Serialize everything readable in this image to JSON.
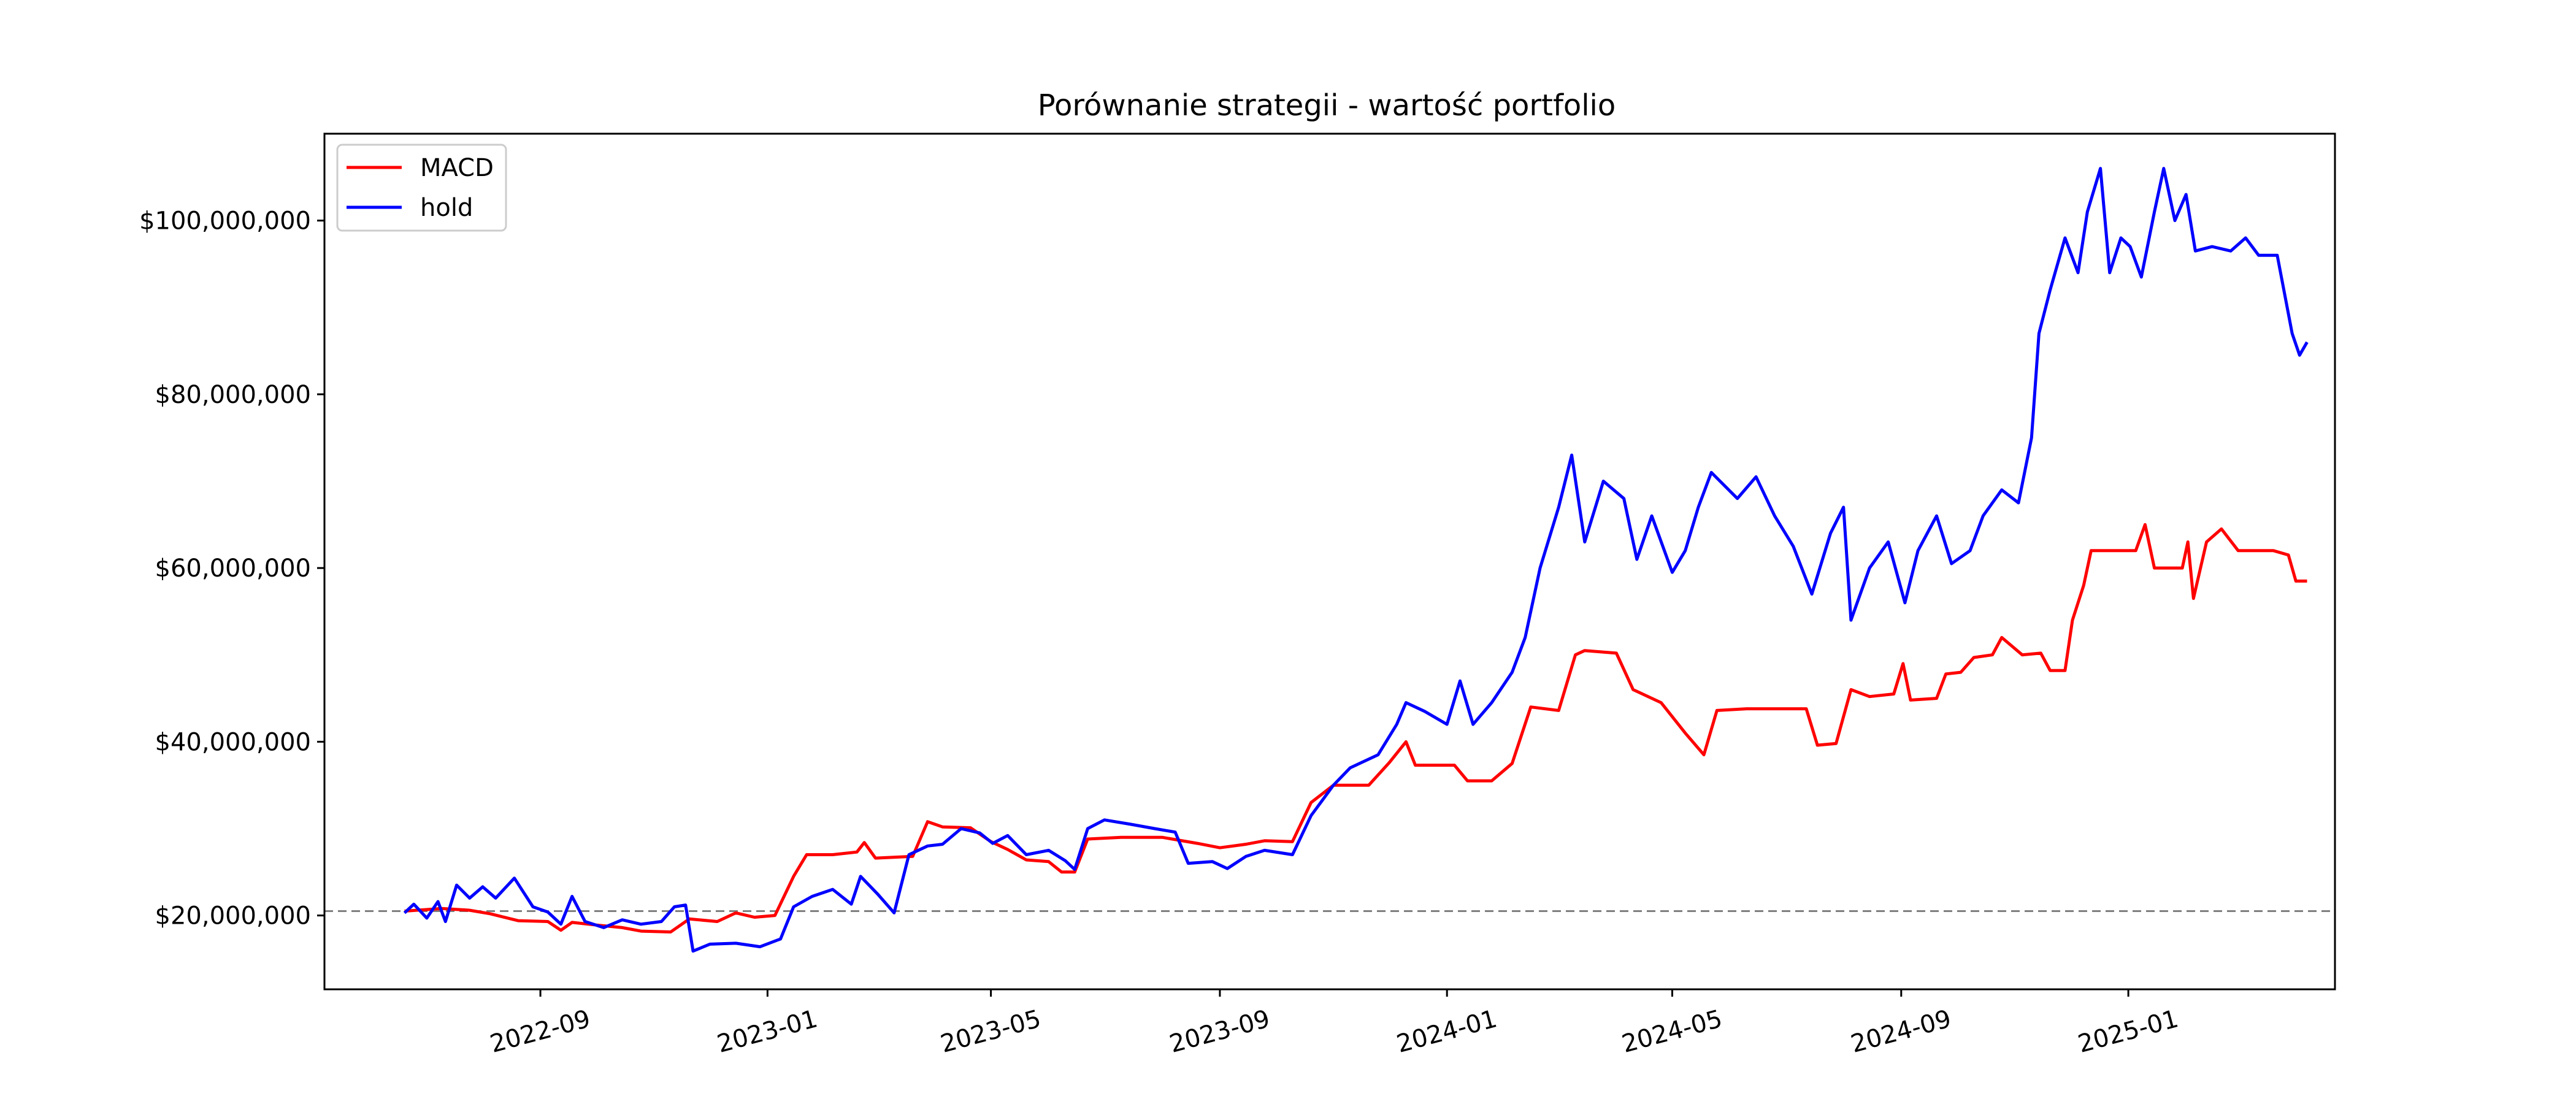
{
  "chart_data": {
    "type": "line",
    "title": "Porównanie strategii - wartość portfolio",
    "xlabel": "",
    "ylabel": "",
    "x_ticks": [
      "2022-09",
      "2023-01",
      "2023-05",
      "2023-09",
      "2024-01",
      "2024-05",
      "2024-09",
      "2025-01"
    ],
    "y_ticks": [
      "$20,000,000",
      "$40,000,000",
      "$60,000,000",
      "$80,000,000",
      "$100,000,000"
    ],
    "y_tick_values": [
      20000000,
      40000000,
      60000000,
      80000000,
      100000000
    ],
    "xlim": [
      "2022-05-08",
      "2025-04-22"
    ],
    "ylim": [
      11500000,
      110000000
    ],
    "grid": false,
    "legend": "top-left",
    "reference_line": {
      "y": 20500000,
      "style": "dashed",
      "color": "#808080"
    },
    "series": [
      {
        "name": "MACD",
        "color": "#ff0000",
        "points": [
          [
            "2022-06-20",
            20.5
          ],
          [
            "2022-07-10",
            20.8
          ],
          [
            "2022-07-25",
            20.6
          ],
          [
            "2022-08-05",
            20.2
          ],
          [
            "2022-08-20",
            19.4
          ],
          [
            "2022-09-05",
            19.3
          ],
          [
            "2022-09-12",
            18.3
          ],
          [
            "2022-09-18",
            19.2
          ],
          [
            "2022-10-01",
            18.9
          ],
          [
            "2022-10-15",
            18.6
          ],
          [
            "2022-10-25",
            18.2
          ],
          [
            "2022-11-10",
            18.1
          ],
          [
            "2022-11-20",
            19.6
          ],
          [
            "2022-12-05",
            19.3
          ],
          [
            "2022-12-15",
            20.3
          ],
          [
            "2022-12-25",
            19.8
          ],
          [
            "2023-01-05",
            20.0
          ],
          [
            "2023-01-15",
            24.5
          ],
          [
            "2023-01-22",
            27.0
          ],
          [
            "2023-02-05",
            27.0
          ],
          [
            "2023-02-18",
            27.3
          ],
          [
            "2023-02-22",
            28.4
          ],
          [
            "2023-02-28",
            26.6
          ],
          [
            "2023-03-20",
            26.8
          ],
          [
            "2023-03-28",
            30.8
          ],
          [
            "2023-04-05",
            30.2
          ],
          [
            "2023-04-20",
            30.1
          ],
          [
            "2023-05-01",
            28.5
          ],
          [
            "2023-05-10",
            27.6
          ],
          [
            "2023-05-20",
            26.4
          ],
          [
            "2023-06-01",
            26.2
          ],
          [
            "2023-06-08",
            25.0
          ],
          [
            "2023-06-15",
            25.0
          ],
          [
            "2023-06-22",
            28.8
          ],
          [
            "2023-07-10",
            29.0
          ],
          [
            "2023-08-01",
            29.0
          ],
          [
            "2023-08-20",
            28.3
          ],
          [
            "2023-09-01",
            27.8
          ],
          [
            "2023-09-15",
            28.2
          ],
          [
            "2023-09-25",
            28.6
          ],
          [
            "2023-10-10",
            28.5
          ],
          [
            "2023-10-20",
            33.0
          ],
          [
            "2023-11-01",
            35.0
          ],
          [
            "2023-11-20",
            35.0
          ],
          [
            "2023-12-01",
            37.6
          ],
          [
            "2023-12-10",
            40.0
          ],
          [
            "2023-12-15",
            37.3
          ],
          [
            "2024-01-05",
            37.3
          ],
          [
            "2024-01-12",
            35.5
          ],
          [
            "2024-01-25",
            35.5
          ],
          [
            "2024-02-05",
            37.5
          ],
          [
            "2024-02-15",
            44.0
          ],
          [
            "2024-03-01",
            43.6
          ],
          [
            "2024-03-10",
            50.0
          ],
          [
            "2024-03-15",
            50.5
          ],
          [
            "2024-04-01",
            50.2
          ],
          [
            "2024-04-10",
            46.0
          ],
          [
            "2024-04-25",
            44.5
          ],
          [
            "2024-05-08",
            41.0
          ],
          [
            "2024-05-18",
            38.5
          ],
          [
            "2024-05-25",
            43.6
          ],
          [
            "2024-06-10",
            43.8
          ],
          [
            "2024-07-12",
            43.8
          ],
          [
            "2024-07-18",
            39.6
          ],
          [
            "2024-07-28",
            39.8
          ],
          [
            "2024-08-05",
            46.0
          ],
          [
            "2024-08-15",
            45.2
          ],
          [
            "2024-08-28",
            45.5
          ],
          [
            "2024-09-02",
            49.0
          ],
          [
            "2024-09-06",
            44.8
          ],
          [
            "2024-09-20",
            45.0
          ],
          [
            "2024-09-25",
            47.8
          ],
          [
            "2024-10-03",
            48.0
          ],
          [
            "2024-10-10",
            49.7
          ],
          [
            "2024-10-20",
            50.0
          ],
          [
            "2024-10-25",
            52.0
          ],
          [
            "2024-11-05",
            50.0
          ],
          [
            "2024-11-15",
            50.2
          ],
          [
            "2024-11-20",
            48.2
          ],
          [
            "2024-11-28",
            48.2
          ],
          [
            "2024-12-02",
            54.0
          ],
          [
            "2024-12-08",
            58.0
          ],
          [
            "2024-12-12",
            62.0
          ],
          [
            "2024-12-25",
            62.0
          ],
          [
            "2025-01-05",
            62.0
          ],
          [
            "2025-01-10",
            65.0
          ],
          [
            "2025-01-15",
            60.0
          ],
          [
            "2025-01-30",
            60.0
          ],
          [
            "2025-02-02",
            63.0
          ],
          [
            "2025-02-05",
            56.5
          ],
          [
            "2025-02-12",
            63.0
          ],
          [
            "2025-02-20",
            64.5
          ],
          [
            "2025-03-01",
            62.0
          ],
          [
            "2025-03-10",
            62.0
          ],
          [
            "2025-03-20",
            62.0
          ],
          [
            "2025-03-28",
            61.5
          ],
          [
            "2025-04-01",
            58.5
          ],
          [
            "2025-04-07",
            58.5
          ]
        ]
      },
      {
        "name": "hold",
        "color": "#0000ff",
        "points": [
          [
            "2022-06-20",
            20.3
          ],
          [
            "2022-06-25",
            21.3
          ],
          [
            "2022-07-02",
            19.7
          ],
          [
            "2022-07-08",
            21.6
          ],
          [
            "2022-07-12",
            19.3
          ],
          [
            "2022-07-18",
            23.5
          ],
          [
            "2022-07-25",
            22.0
          ],
          [
            "2022-08-01",
            23.3
          ],
          [
            "2022-08-08",
            22.0
          ],
          [
            "2022-08-18",
            24.3
          ],
          [
            "2022-08-28",
            21.0
          ],
          [
            "2022-09-05",
            20.4
          ],
          [
            "2022-09-12",
            19.0
          ],
          [
            "2022-09-18",
            22.2
          ],
          [
            "2022-09-25",
            19.3
          ],
          [
            "2022-10-05",
            18.6
          ],
          [
            "2022-10-15",
            19.5
          ],
          [
            "2022-10-25",
            19.0
          ],
          [
            "2022-11-05",
            19.3
          ],
          [
            "2022-11-12",
            21.0
          ],
          [
            "2022-11-18",
            21.2
          ],
          [
            "2022-11-22",
            15.9
          ],
          [
            "2022-12-01",
            16.7
          ],
          [
            "2022-12-15",
            16.8
          ],
          [
            "2022-12-28",
            16.4
          ],
          [
            "2023-01-08",
            17.3
          ],
          [
            "2023-01-15",
            21.0
          ],
          [
            "2023-01-25",
            22.2
          ],
          [
            "2023-02-05",
            23.0
          ],
          [
            "2023-02-15",
            21.3
          ],
          [
            "2023-02-20",
            24.5
          ],
          [
            "2023-03-01",
            22.5
          ],
          [
            "2023-03-10",
            20.3
          ],
          [
            "2023-03-18",
            27.0
          ],
          [
            "2023-03-28",
            28.0
          ],
          [
            "2023-04-05",
            28.2
          ],
          [
            "2023-04-15",
            30.0
          ],
          [
            "2023-04-25",
            29.5
          ],
          [
            "2023-05-02",
            28.3
          ],
          [
            "2023-05-10",
            29.2
          ],
          [
            "2023-05-20",
            27.0
          ],
          [
            "2023-06-01",
            27.5
          ],
          [
            "2023-06-10",
            26.3
          ],
          [
            "2023-06-15",
            25.3
          ],
          [
            "2023-06-22",
            30.0
          ],
          [
            "2023-07-01",
            31.0
          ],
          [
            "2023-07-15",
            30.5
          ],
          [
            "2023-07-28",
            30.0
          ],
          [
            "2023-08-08",
            29.6
          ],
          [
            "2023-08-15",
            26.0
          ],
          [
            "2023-08-28",
            26.2
          ],
          [
            "2023-09-05",
            25.4
          ],
          [
            "2023-09-15",
            26.8
          ],
          [
            "2023-09-25",
            27.5
          ],
          [
            "2023-10-10",
            27.0
          ],
          [
            "2023-10-20",
            31.5
          ],
          [
            "2023-11-01",
            35.0
          ],
          [
            "2023-11-10",
            37.0
          ],
          [
            "2023-11-25",
            38.5
          ],
          [
            "2023-12-05",
            42.0
          ],
          [
            "2023-12-10",
            44.5
          ],
          [
            "2023-12-20",
            43.5
          ],
          [
            "2024-01-01",
            42.0
          ],
          [
            "2024-01-08",
            47.0
          ],
          [
            "2024-01-15",
            42.0
          ],
          [
            "2024-01-25",
            44.5
          ],
          [
            "2024-02-05",
            48.0
          ],
          [
            "2024-02-12",
            52.0
          ],
          [
            "2024-02-20",
            60.0
          ],
          [
            "2024-03-01",
            67.0
          ],
          [
            "2024-03-08",
            73.0
          ],
          [
            "2024-03-15",
            63.0
          ],
          [
            "2024-03-25",
            70.0
          ],
          [
            "2024-04-05",
            68.0
          ],
          [
            "2024-04-12",
            61.0
          ],
          [
            "2024-04-20",
            66.0
          ],
          [
            "2024-05-01",
            59.5
          ],
          [
            "2024-05-08",
            62.0
          ],
          [
            "2024-05-15",
            67.0
          ],
          [
            "2024-05-22",
            71.0
          ],
          [
            "2024-06-05",
            68.0
          ],
          [
            "2024-06-15",
            70.5
          ],
          [
            "2024-06-25",
            66.0
          ],
          [
            "2024-07-05",
            62.5
          ],
          [
            "2024-07-15",
            57.0
          ],
          [
            "2024-07-25",
            64.0
          ],
          [
            "2024-08-01",
            67.0
          ],
          [
            "2024-08-05",
            54.0
          ],
          [
            "2024-08-15",
            60.0
          ],
          [
            "2024-08-25",
            63.0
          ],
          [
            "2024-09-03",
            56.0
          ],
          [
            "2024-09-10",
            62.0
          ],
          [
            "2024-09-20",
            66.0
          ],
          [
            "2024-09-28",
            60.5
          ],
          [
            "2024-10-08",
            62.0
          ],
          [
            "2024-10-15",
            66.0
          ],
          [
            "2024-10-25",
            69.0
          ],
          [
            "2024-11-03",
            67.5
          ],
          [
            "2024-11-10",
            75.0
          ],
          [
            "2024-11-14",
            87.0
          ],
          [
            "2024-11-20",
            92.0
          ],
          [
            "2024-11-28",
            98.0
          ],
          [
            "2024-12-05",
            94.0
          ],
          [
            "2024-12-10",
            101.0
          ],
          [
            "2024-12-17",
            106.0
          ],
          [
            "2024-12-22",
            94.0
          ],
          [
            "2024-12-28",
            98.0
          ],
          [
            "2025-01-02",
            97.0
          ],
          [
            "2025-01-08",
            93.5
          ],
          [
            "2025-01-15",
            101.0
          ],
          [
            "2025-01-20",
            106.0
          ],
          [
            "2025-01-26",
            100.0
          ],
          [
            "2025-02-01",
            103.0
          ],
          [
            "2025-02-06",
            96.5
          ],
          [
            "2025-02-15",
            97.0
          ],
          [
            "2025-02-25",
            96.5
          ],
          [
            "2025-03-05",
            98.0
          ],
          [
            "2025-03-12",
            96.0
          ],
          [
            "2025-03-22",
            96.0
          ],
          [
            "2025-03-30",
            87.0
          ],
          [
            "2025-04-03",
            84.5
          ],
          [
            "2025-04-07",
            86.0
          ]
        ]
      }
    ]
  }
}
